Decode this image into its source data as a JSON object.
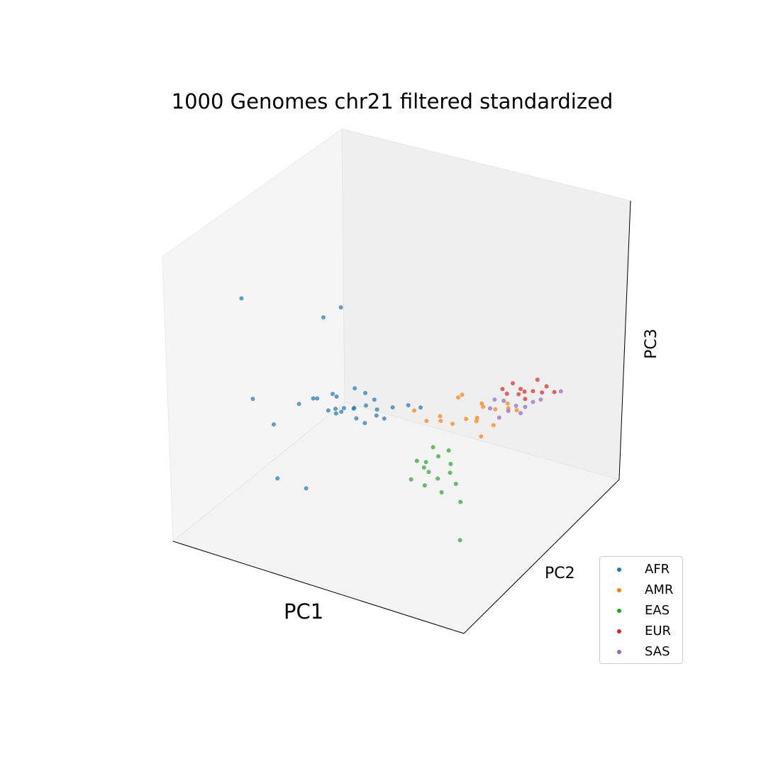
{
  "chart_data": {
    "type": "scatter",
    "projection": "3d",
    "title": "1000 Genomes chr21 filtered standardized",
    "xlabel": "PC1",
    "ylabel": "PC2",
    "zlabel": "PC3",
    "legend_position": "lower right",
    "grid": false,
    "tick_labels": false,
    "series": [
      {
        "name": "AFR",
        "color": "#1f77b4",
        "points": [
          [
            -0.1,
            0.1,
            0.0
          ],
          [
            0.2,
            -0.1,
            0.1
          ],
          [
            -0.4,
            0.3,
            -0.1
          ],
          [
            0.5,
            -0.2,
            0.0
          ],
          [
            -0.8,
            0.3,
            -0.2
          ],
          [
            -0.3,
            -0.5,
            0.3
          ],
          [
            0.9,
            -0.4,
            0.1
          ],
          [
            -0.5,
            0.5,
            0.1
          ],
          [
            0.1,
            0.4,
            -0.1
          ],
          [
            -1.1,
            0.4,
            0.2
          ],
          [
            0.3,
            -0.5,
            0.1
          ],
          [
            -0.2,
            -0.2,
            -0.2
          ],
          [
            0.6,
            0.1,
            0.0
          ],
          [
            -0.7,
            -0.1,
            0.1
          ],
          [
            1.3,
            -0.6,
            0.2
          ],
          [
            -1.5,
            0.8,
            0.1
          ],
          [
            0.4,
            0.5,
            -0.1
          ],
          [
            -0.9,
            -0.3,
            0.0
          ],
          [
            1.6,
            -0.8,
            0.1
          ],
          [
            -0.2,
            0.6,
            0.3
          ],
          [
            -0.6,
            0.2,
            -0.3
          ],
          [
            0.8,
            0.0,
            -0.1
          ],
          [
            -1.3,
            0.2,
            0.0
          ],
          [
            0.1,
            -0.3,
            0.4
          ],
          [
            -3.5,
            0.2,
            2.9
          ],
          [
            -1.3,
            -0.6,
            2.5
          ],
          [
            -1.0,
            -1.2,
            2.6
          ],
          [
            -1.3,
            3.0,
            -1.2
          ],
          [
            -0.5,
            2.8,
            -1.4
          ],
          [
            -2.8,
            1.1,
            0.0
          ],
          [
            -2.0,
            1.5,
            -0.4
          ]
        ]
      },
      {
        "name": "AMR",
        "color": "#ff7f0e",
        "points": [
          [
            3.5,
            -1.8,
            0.1
          ],
          [
            3.2,
            -1.5,
            0.4
          ],
          [
            2.8,
            -1.3,
            -0.2
          ],
          [
            2.5,
            -1.0,
            -0.3
          ],
          [
            3.8,
            -2.0,
            0.3
          ],
          [
            2.2,
            -0.8,
            0.0
          ],
          [
            3.0,
            -1.6,
            -0.4
          ],
          [
            4.0,
            -2.2,
            0.0
          ],
          [
            2.6,
            -1.5,
            0.5
          ],
          [
            1.9,
            -0.5,
            -0.1
          ],
          [
            3.3,
            -1.2,
            -0.6
          ],
          [
            2.4,
            -1.7,
            0.2
          ],
          [
            3.6,
            -1.4,
            -0.2
          ],
          [
            1.6,
            -0.3,
            0.3
          ],
          [
            2.9,
            -1.9,
            -0.5
          ],
          [
            3.4,
            -1.1,
            0.6
          ],
          [
            2.1,
            -1.1,
            -0.4
          ],
          [
            3.7,
            -2.3,
            -0.1
          ]
        ]
      },
      {
        "name": "EAS",
        "color": "#2ca02c",
        "points": [
          [
            2.3,
            -0.4,
            -1.2
          ],
          [
            2.0,
            -0.2,
            -1.4
          ],
          [
            2.6,
            -0.6,
            -1.5
          ],
          [
            1.8,
            0.0,
            -1.3
          ],
          [
            2.4,
            -0.1,
            -1.8
          ],
          [
            2.1,
            -0.5,
            -1.0
          ],
          [
            2.7,
            -0.3,
            -1.6
          ],
          [
            1.9,
            -0.3,
            -1.7
          ],
          [
            2.5,
            -0.7,
            -1.1
          ],
          [
            2.2,
            0.1,
            -1.5
          ],
          [
            1.7,
            0.2,
            -1.9
          ],
          [
            2.8,
            -0.5,
            -2.1
          ],
          [
            2.0,
            -0.1,
            -2.2
          ],
          [
            2.4,
            -0.4,
            -2.5
          ],
          [
            2.9,
            -0.6,
            -2.8
          ],
          [
            3.2,
            0.2,
            -3.6
          ]
        ]
      },
      {
        "name": "EUR",
        "color": "#d62728",
        "points": [
          [
            4.0,
            -2.5,
            0.6
          ],
          [
            4.3,
            -2.7,
            0.5
          ],
          [
            3.8,
            -2.4,
            0.8
          ],
          [
            4.5,
            -2.9,
            0.4
          ],
          [
            3.9,
            -2.6,
            0.3
          ],
          [
            4.2,
            -2.3,
            0.7
          ],
          [
            4.6,
            -3.0,
            0.6
          ],
          [
            3.7,
            -2.2,
            0.5
          ],
          [
            4.4,
            -2.8,
            0.9
          ],
          [
            4.1,
            -2.6,
            0.2
          ],
          [
            4.8,
            -3.1,
            0.4
          ],
          [
            3.6,
            -2.1,
            0.7
          ]
        ]
      },
      {
        "name": "SAS",
        "color": "#9467bd",
        "points": [
          [
            3.6,
            -2.2,
            0.2
          ],
          [
            3.9,
            -2.4,
            0.0
          ],
          [
            3.4,
            -2.0,
            0.3
          ],
          [
            4.1,
            -2.6,
            -0.1
          ],
          [
            3.7,
            -2.3,
            -0.2
          ],
          [
            4.3,
            -2.7,
            0.1
          ],
          [
            3.3,
            -1.9,
            0.0
          ],
          [
            4.0,
            -2.5,
            -0.3
          ],
          [
            4.5,
            -2.8,
            0.2
          ],
          [
            5.0,
            -3.1,
            0.5
          ],
          [
            3.5,
            -2.1,
            -0.4
          ]
        ]
      }
    ]
  }
}
